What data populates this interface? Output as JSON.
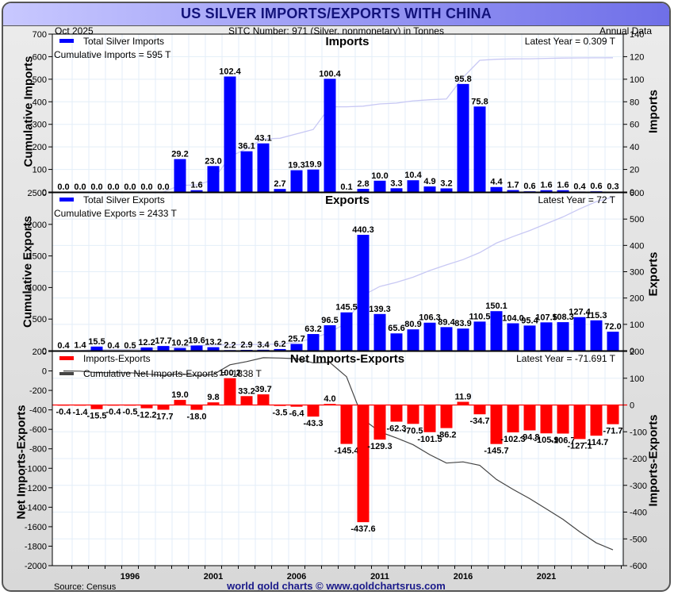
{
  "header": {
    "title": "US SILVER IMPORTS/EXPORTS WITH CHINA",
    "date": "Oct  2025",
    "subtitle": "SITC Number: 971 (Silver, nonmonetary) in Tonnes",
    "frequency": "Annual Data"
  },
  "footer": {
    "source": "Source: Census",
    "credit": "world gold charts © www.goldchartsrus.com"
  },
  "colors": {
    "imports_bar": "#0000ff",
    "exports_bar": "#0000ff",
    "net_bar": "#ff0000",
    "cumulative_line_blue": "#c8c8f4",
    "cumulative_line_net": "#444444",
    "grid": "#e3eef8"
  },
  "chart_data": [
    {
      "type": "bar",
      "title": "Imports",
      "legend": "Total Silver Imports",
      "legend_position": "top-left",
      "annotation_left": "Cumulative Imports = 595 T",
      "annotation_right": "Latest Year = 0.309 T",
      "ylabel_left": "Cumulative Imports",
      "ylabel_right": "Imports",
      "ylim_left": [
        0,
        700
      ],
      "ylim_right": [
        0,
        140
      ],
      "yticks_left": [
        0,
        100,
        200,
        300,
        400,
        500,
        600,
        700
      ],
      "yticks_right": [
        0,
        20,
        40,
        60,
        80,
        100,
        120,
        140
      ],
      "x": [
        1992,
        1993,
        1994,
        1995,
        1996,
        1997,
        1998,
        1999,
        2000,
        2001,
        2002,
        2003,
        2004,
        2005,
        2006,
        2007,
        2008,
        2009,
        2010,
        2011,
        2012,
        2013,
        2014,
        2015,
        2016,
        2017,
        2018,
        2019,
        2020,
        2021,
        2022,
        2023,
        2024,
        2025
      ],
      "values": [
        0.0,
        0.0,
        0.0,
        0.0,
        0.0,
        0.0,
        0.0,
        29.2,
        1.6,
        23.0,
        102.4,
        36.1,
        43.1,
        2.7,
        19.3,
        19.9,
        100.4,
        0.1,
        2.8,
        10.0,
        3.3,
        10.4,
        4.9,
        3.2,
        95.8,
        75.8,
        4.4,
        1.7,
        0.6,
        1.6,
        1.6,
        0.4,
        0.6,
        0.3
      ],
      "value_labels": [
        "0.0",
        "0.0",
        "0.0",
        "0.0",
        "0.0",
        "0.0",
        "0.0",
        "29.2",
        "1.6",
        "23.0",
        "102.4",
        "36.1",
        "43.1",
        "2.7",
        "19.3",
        "19.9",
        "100.4",
        "0.1",
        "2.8",
        "10.0",
        "3.3",
        "10.4",
        "4.9",
        "3.2",
        "95.8",
        "75.8",
        "4.4",
        "1.7",
        "0.6",
        "1.6",
        "1.6",
        "0.4",
        "0.6",
        "0.3"
      ],
      "cumulative_series": "cumulative sum of values (left axis)"
    },
    {
      "type": "bar",
      "title": "Exports",
      "legend": "Total Silver Exports",
      "legend_position": "top-left",
      "annotation_left": "Cumulative Exports = 2433 T",
      "annotation_right": "Latest Year = 72 T",
      "ylabel_left": "Cumulative Exports",
      "ylabel_right": "Exports",
      "ylim_left": [
        0,
        2500
      ],
      "ylim_right": [
        0,
        600
      ],
      "yticks_left": [
        0,
        500,
        1000,
        1500,
        2000,
        2500
      ],
      "yticks_right": [
        0,
        100,
        200,
        300,
        400,
        500,
        600
      ],
      "x": [
        1992,
        1993,
        1994,
        1995,
        1996,
        1997,
        1998,
        1999,
        2000,
        2001,
        2002,
        2003,
        2004,
        2005,
        2006,
        2007,
        2008,
        2009,
        2010,
        2011,
        2012,
        2013,
        2014,
        2015,
        2016,
        2017,
        2018,
        2019,
        2020,
        2021,
        2022,
        2023,
        2024,
        2025
      ],
      "values": [
        0.4,
        1.4,
        15.5,
        0.4,
        0.5,
        12.2,
        17.7,
        10.2,
        19.6,
        13.2,
        2.2,
        2.9,
        3.4,
        6.2,
        25.7,
        63.2,
        96.5,
        145.5,
        440.3,
        139.3,
        65.6,
        80.9,
        106.3,
        89.4,
        83.9,
        110.5,
        150.1,
        104.0,
        95.4,
        107.5,
        108.3,
        127.4,
        115.3,
        72.0
      ],
      "value_labels": [
        "0.4",
        "1.4",
        "15.5",
        "0.4",
        "0.5",
        "12.2",
        "17.7",
        "10.2",
        "19.6",
        "13.2",
        "2.2",
        "2.9",
        "3.4",
        "6.2",
        "25.7",
        "63.2",
        "96.5",
        "145.5",
        "440.3",
        "139.3",
        "65.6",
        "80.9",
        "106.3",
        "89.4",
        "83.9",
        "110.5",
        "150.1",
        "104.0",
        "95.4",
        "107.5",
        "108.3",
        "127.4",
        "115.3",
        "72.0"
      ],
      "cumulative_series": "cumulative sum of values (left axis)"
    },
    {
      "type": "bar",
      "title": "Net Imports-Exports",
      "legend": "Imports-Exports",
      "legend_line": "Cumulative Net Imports-Exports = -1838 T",
      "legend_position": "top-left",
      "annotation_right": "Latest Year = -71.691 T",
      "ylabel_left": "Net Imports-Exports",
      "ylabel_right": "Imports-Exports",
      "ylim_left": [
        -2000,
        200
      ],
      "ylim_right": [
        -600,
        200
      ],
      "yticks_left": [
        -2000,
        -1800,
        -1600,
        -1400,
        -1200,
        -1000,
        -800,
        -600,
        -400,
        -200,
        0,
        200
      ],
      "yticks_right": [
        -600,
        -500,
        -400,
        -300,
        -200,
        -100,
        0,
        100,
        200
      ],
      "x": [
        1992,
        1993,
        1994,
        1995,
        1996,
        1997,
        1998,
        1999,
        2000,
        2001,
        2002,
        2003,
        2004,
        2005,
        2006,
        2007,
        2008,
        2009,
        2010,
        2011,
        2012,
        2013,
        2014,
        2015,
        2016,
        2017,
        2018,
        2019,
        2020,
        2021,
        2022,
        2023,
        2024,
        2025
      ],
      "values": [
        -0.4,
        -1.4,
        -15.5,
        -0.4,
        -0.5,
        -12.2,
        -17.7,
        19.0,
        -18.0,
        9.8,
        100.2,
        33.2,
        39.7,
        -3.5,
        -6.4,
        -43.3,
        4.0,
        -145.4,
        -437.6,
        -129.3,
        -62.3,
        -70.5,
        -101.5,
        -86.2,
        11.9,
        -34.7,
        -145.7,
        -102.3,
        -94.8,
        -105.9,
        -106.7,
        -127.1,
        -114.7,
        -71.7
      ],
      "value_labels": [
        "-0.4",
        "-1.4",
        "-15.5",
        "-0.4",
        "-0.5",
        "-12.2",
        "-17.7",
        "19.0",
        "-18.0",
        "9.8",
        "100.2",
        "33.2",
        "39.7",
        "-3.5",
        "-6.4",
        "-43.3",
        "4.0",
        "-145.4",
        "-437.6",
        "-129.3",
        "-62.3",
        "-70.5",
        "-101.5",
        "-86.2",
        "11.9",
        "-34.7",
        "-145.7",
        "-102.3",
        "-94.8",
        "-105.9",
        "-106.7",
        "-127.1",
        "-114.7",
        "-71.7"
      ],
      "cumulative_series": "cumulative sum of values (left axis)"
    }
  ],
  "x_axis": {
    "tick_labels": [
      "1996",
      "2001",
      "2006",
      "2011",
      "2016",
      "2021"
    ],
    "tick_years": [
      1996,
      2001,
      2006,
      2011,
      2016,
      2021
    ]
  }
}
